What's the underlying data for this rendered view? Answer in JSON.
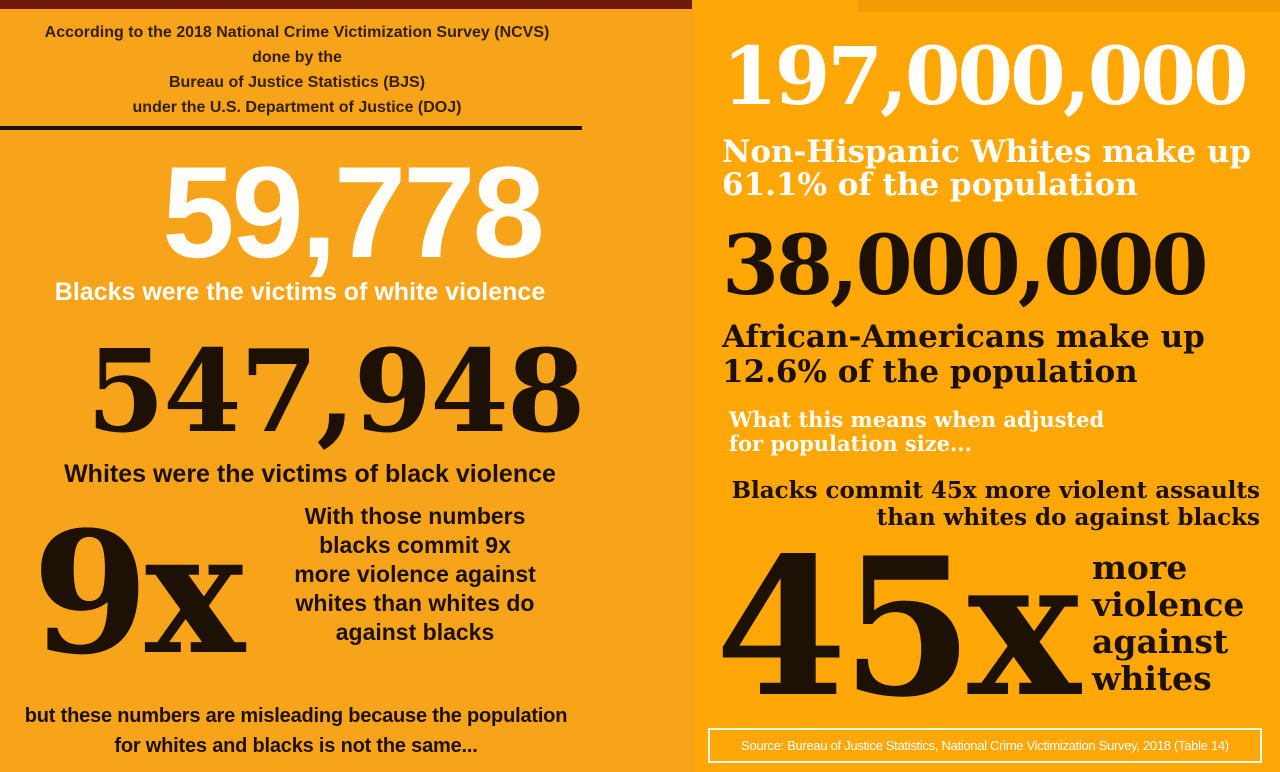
{
  "colors": {
    "bg_left": "#F8A41B",
    "bg_right": "#FFA707",
    "ink": "#1C1104",
    "paper": "#FFFEFA",
    "header_ink": "#352004",
    "strip_maroon": "#6F1A0D",
    "strip_orange": "#F49B04"
  },
  "left": {
    "header_lines": [
      "According to the 2018 National Crime Victimization Survey (NCVS)",
      "done by the",
      "Bureau of Justice Statistics (BJS)",
      "under the U.S. Department of Justice (DOJ)"
    ],
    "stat_black_victims": {
      "value": "59,778",
      "label": "Blacks were the victims of white violence"
    },
    "stat_white_victims": {
      "value": "547,948",
      "label": "Whites were the victims of black violence"
    },
    "ratio": {
      "value": "9x",
      "lines": [
        "With those numbers",
        "blacks commit 9x",
        "more violence against",
        "whites than whites do",
        "against blacks"
      ]
    },
    "footnote_lines": [
      "but these numbers are misleading because the population",
      "for whites and blacks is not the same..."
    ]
  },
  "right": {
    "white_population": {
      "value": "197,000,000",
      "lines": [
        "Non-Hispanic Whites make up",
        "61.1% of the population"
      ]
    },
    "black_population": {
      "value": "38,000,000",
      "lines": [
        "African-Americans make up",
        "12.6% of the population"
      ]
    },
    "adjusted_lines": [
      "What this means when adjusted",
      "for population size..."
    ],
    "claim_lines": [
      "Blacks commit 45x more violent assaults",
      "than whites do against blacks"
    ],
    "ratio": {
      "value": "45x",
      "lines": [
        "more",
        "violence",
        "against",
        "whites"
      ]
    },
    "source": "Source: Bureau of Justice Statistics, National Crime Victimization Survey, 2018 (Table 14)"
  },
  "chart_data": {
    "type": "table",
    "title": "2018 National Crime Victimization Survey (NCVS) — interracial violence infographic",
    "rows": [
      {
        "metric": "Blacks were the victims of white violence",
        "value": 59778
      },
      {
        "metric": "Whites were the victims of black violence",
        "value": 547948
      },
      {
        "metric": "Raw ratio: black-on-white vs white-on-black violence",
        "value": "9x"
      },
      {
        "metric": "Non-Hispanic White population",
        "value": 197000000,
        "population_share": "61.1%"
      },
      {
        "metric": "African-American population",
        "value": 38000000,
        "population_share": "12.6%"
      },
      {
        "metric": "Population-adjusted ratio: more violent assaults by blacks against whites",
        "value": "45x"
      }
    ],
    "source": "Bureau of Justice Statistics, National Crime Victimization Survey, 2018 (Table 14)"
  }
}
